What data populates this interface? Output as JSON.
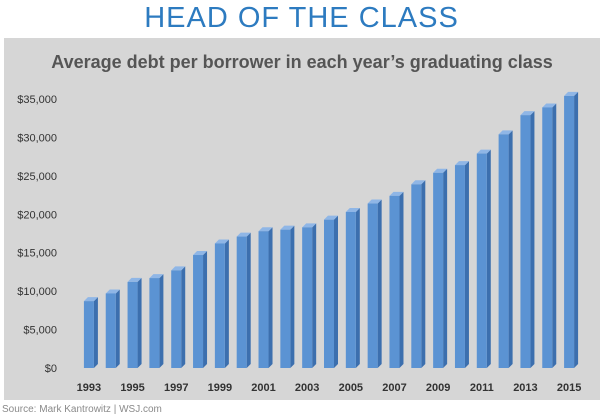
{
  "headline": "HEAD OF THE CLASS",
  "source": "Source: Mark Kantrowitz | WSJ.com",
  "colors": {
    "headline": "#2d7bc0",
    "panel": "#d6d6d6",
    "bar_front": "#5b93d3",
    "bar_side": "#3c6fae",
    "bar_top": "#8fb6e6"
  },
  "chart_data": {
    "type": "bar",
    "title": "Average debt per borrower in each year’s graduating class",
    "xlabel": "",
    "ylabel": "",
    "ylim": [
      0,
      35000
    ],
    "yticks": [
      0,
      5000,
      10000,
      15000,
      20000,
      25000,
      30000,
      35000
    ],
    "ytick_labels": [
      "$0",
      "$5,000",
      "$10,000",
      "$15,000",
      "$20,000",
      "$25,000",
      "$30,000",
      "$35,000"
    ],
    "categories": [
      "1993",
      "1994",
      "1995",
      "1996",
      "1997",
      "1998",
      "1999",
      "2000",
      "2001",
      "2002",
      "2003",
      "2004",
      "2005",
      "2006",
      "2007",
      "2008",
      "2009",
      "2010",
      "2011",
      "2012",
      "2013",
      "2014",
      "2015"
    ],
    "xtick_labels": [
      "1993",
      "",
      "1995",
      "",
      "1997",
      "",
      "1999",
      "",
      "2001",
      "",
      "2003",
      "",
      "2005",
      "",
      "2007",
      "",
      "2009",
      "",
      "2011",
      "",
      "2013",
      "",
      "2015"
    ],
    "values": [
      8700,
      9700,
      11200,
      11700,
      12700,
      14700,
      16200,
      17100,
      17800,
      18000,
      18300,
      19300,
      20300,
      21400,
      22400,
      23900,
      25400,
      26400,
      27900,
      30400,
      32900,
      33900,
      35400
    ],
    "grid": false,
    "legend": "none"
  }
}
